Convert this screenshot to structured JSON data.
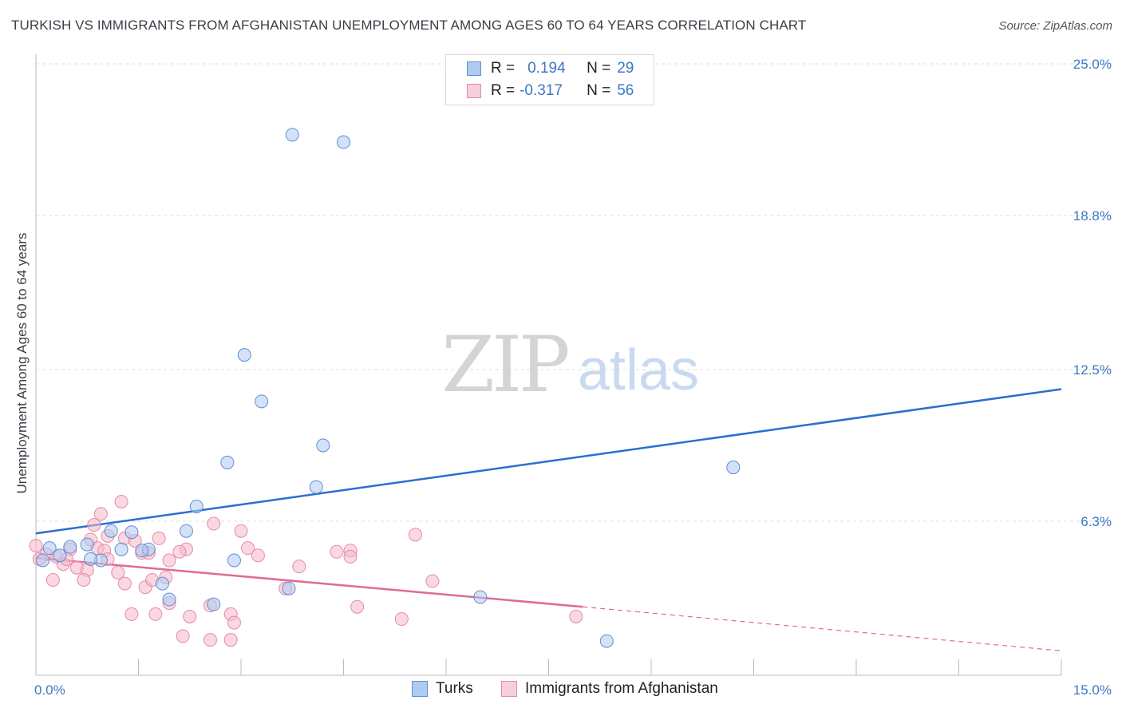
{
  "title": "TURKISH VS IMMIGRANTS FROM AFGHANISTAN UNEMPLOYMENT AMONG AGES 60 TO 64 YEARS CORRELATION CHART",
  "source": "Source: ZipAtlas.com",
  "watermark": {
    "zip": "ZIP",
    "atlas": "atlas"
  },
  "legend": {
    "turks": {
      "r_label": "R =",
      "r_value": "0.194",
      "n_label": "N =",
      "n_value": "29"
    },
    "afghan": {
      "r_label": "R =",
      "r_value": "-0.317",
      "n_label": "N =",
      "n_value": "56"
    }
  },
  "bottom_legend": {
    "turks": "Turks",
    "afghan": "Immigrants from Afghanistan"
  },
  "colors": {
    "turks_fill": "#aecbf0",
    "turks_stroke": "#5b8fd6",
    "turks_line": "#2a6fcf",
    "afghan_fill": "#f6b8cb",
    "afghan_stroke": "#e889a6",
    "afghan_line": "#e06b92",
    "tick_text": "#3b78c3",
    "grid": "#dddddd"
  },
  "chart_data": {
    "type": "scatter",
    "title": "TURKISH VS IMMIGRANTS FROM AFGHANISTAN UNEMPLOYMENT AMONG AGES 60 TO 64 YEARS CORRELATION CHART",
    "xlabel": "",
    "ylabel": "Unemployment Among Ages 60 to 64 years",
    "xlim": [
      0,
      15
    ],
    "ylim": [
      0,
      25
    ],
    "y_ticks": [
      6.3,
      12.5,
      18.8,
      25.0
    ],
    "y_tick_labels": [
      "6.3%",
      "12.5%",
      "18.8%",
      "25.0%"
    ],
    "x_tick_labels": [
      "0.0%",
      "15.0%"
    ],
    "series": [
      {
        "name": "Turks",
        "trend": {
          "x": [
            0,
            15
          ],
          "y": [
            5.8,
            11.7
          ]
        },
        "points": [
          {
            "x": 3.75,
            "y": 22.1
          },
          {
            "x": 4.5,
            "y": 21.8
          },
          {
            "x": 3.05,
            "y": 13.1
          },
          {
            "x": 3.3,
            "y": 11.2
          },
          {
            "x": 4.2,
            "y": 9.4
          },
          {
            "x": 2.8,
            "y": 8.7
          },
          {
            "x": 10.2,
            "y": 8.5
          },
          {
            "x": 4.1,
            "y": 7.7
          },
          {
            "x": 2.35,
            "y": 6.9
          },
          {
            "x": 1.1,
            "y": 5.9
          },
          {
            "x": 1.4,
            "y": 5.85
          },
          {
            "x": 2.2,
            "y": 5.9
          },
          {
            "x": 0.2,
            "y": 5.2
          },
          {
            "x": 0.5,
            "y": 5.25
          },
          {
            "x": 0.75,
            "y": 5.35
          },
          {
            "x": 1.25,
            "y": 5.15
          },
          {
            "x": 1.65,
            "y": 5.15
          },
          {
            "x": 1.55,
            "y": 5.1
          },
          {
            "x": 0.35,
            "y": 4.9
          },
          {
            "x": 0.1,
            "y": 4.7
          },
          {
            "x": 0.95,
            "y": 4.7
          },
          {
            "x": 0.8,
            "y": 4.75
          },
          {
            "x": 2.9,
            "y": 4.7
          },
          {
            "x": 1.85,
            "y": 3.75
          },
          {
            "x": 3.7,
            "y": 3.55
          },
          {
            "x": 1.95,
            "y": 3.1
          },
          {
            "x": 2.6,
            "y": 2.9
          },
          {
            "x": 6.5,
            "y": 3.2
          },
          {
            "x": 8.35,
            "y": 1.4
          }
        ]
      },
      {
        "name": "Immigrants from Afghanistan",
        "trend": {
          "x": [
            0,
            8.0
          ],
          "y": [
            4.8,
            2.8
          ]
        },
        "trend_dashed": {
          "x": [
            8.0,
            15
          ],
          "y": [
            2.8,
            1.0
          ]
        },
        "points": [
          {
            "x": 1.25,
            "y": 7.1
          },
          {
            "x": 0.95,
            "y": 6.6
          },
          {
            "x": 0.85,
            "y": 6.15
          },
          {
            "x": 2.6,
            "y": 6.2
          },
          {
            "x": 3.0,
            "y": 5.9
          },
          {
            "x": 5.55,
            "y": 5.75
          },
          {
            "x": 1.3,
            "y": 5.6
          },
          {
            "x": 1.8,
            "y": 5.6
          },
          {
            "x": 0.8,
            "y": 5.55
          },
          {
            "x": 1.45,
            "y": 5.5
          },
          {
            "x": 0.9,
            "y": 5.2
          },
          {
            "x": 0.5,
            "y": 5.15
          },
          {
            "x": 1.0,
            "y": 5.1
          },
          {
            "x": 2.2,
            "y": 5.15
          },
          {
            "x": 2.1,
            "y": 5.05
          },
          {
            "x": 3.1,
            "y": 5.2
          },
          {
            "x": 4.4,
            "y": 5.05
          },
          {
            "x": 4.6,
            "y": 5.1
          },
          {
            "x": 1.55,
            "y": 5.0
          },
          {
            "x": 1.65,
            "y": 5.0
          },
          {
            "x": 0.0,
            "y": 5.3
          },
          {
            "x": 0.15,
            "y": 4.95
          },
          {
            "x": 0.3,
            "y": 4.85
          },
          {
            "x": 1.05,
            "y": 4.75
          },
          {
            "x": 3.25,
            "y": 4.9
          },
          {
            "x": 4.6,
            "y": 4.85
          },
          {
            "x": 0.4,
            "y": 4.55
          },
          {
            "x": 0.6,
            "y": 4.4
          },
          {
            "x": 0.75,
            "y": 4.3
          },
          {
            "x": 1.2,
            "y": 4.2
          },
          {
            "x": 3.85,
            "y": 4.45
          },
          {
            "x": 0.25,
            "y": 3.9
          },
          {
            "x": 0.7,
            "y": 3.9
          },
          {
            "x": 1.3,
            "y": 3.75
          },
          {
            "x": 1.6,
            "y": 3.6
          },
          {
            "x": 1.7,
            "y": 3.9
          },
          {
            "x": 1.9,
            "y": 4.0
          },
          {
            "x": 3.65,
            "y": 3.55
          },
          {
            "x": 5.8,
            "y": 3.85
          },
          {
            "x": 1.95,
            "y": 2.95
          },
          {
            "x": 2.55,
            "y": 2.85
          },
          {
            "x": 4.7,
            "y": 2.8
          },
          {
            "x": 1.4,
            "y": 2.5
          },
          {
            "x": 1.75,
            "y": 2.5
          },
          {
            "x": 2.25,
            "y": 2.4
          },
          {
            "x": 2.85,
            "y": 2.5
          },
          {
            "x": 5.35,
            "y": 2.3
          },
          {
            "x": 7.9,
            "y": 2.4
          },
          {
            "x": 2.9,
            "y": 2.15
          },
          {
            "x": 2.15,
            "y": 1.6
          },
          {
            "x": 2.55,
            "y": 1.45
          },
          {
            "x": 2.85,
            "y": 1.45
          },
          {
            "x": 0.05,
            "y": 4.75
          },
          {
            "x": 0.45,
            "y": 4.75
          },
          {
            "x": 1.95,
            "y": 4.7
          },
          {
            "x": 1.05,
            "y": 5.7
          }
        ]
      }
    ]
  }
}
